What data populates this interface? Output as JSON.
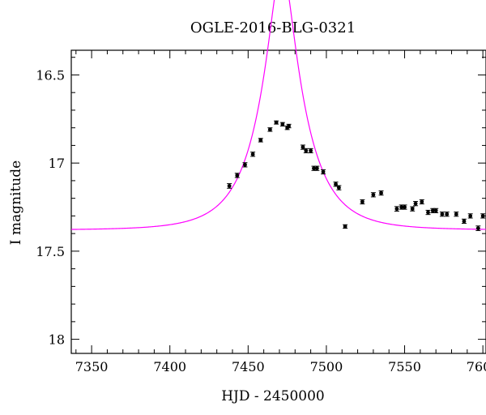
{
  "chart_data": {
    "type": "scatter",
    "title": "OGLE-2016-BLG-0321",
    "xlabel": "HJD - 2450000",
    "ylabel": "I magnitude",
    "xlim": [
      7337,
      7602
    ],
    "ylim": [
      18.08,
      16.36
    ],
    "y_inverted": true,
    "grid": false,
    "x_ticks": [
      {
        "value": 7350,
        "label": "7350"
      },
      {
        "value": 7400,
        "label": "7400"
      },
      {
        "value": 7450,
        "label": "7450"
      },
      {
        "value": 7500,
        "label": "7500"
      },
      {
        "value": 7550,
        "label": "7550"
      },
      {
        "value": 7600,
        "label": "7600"
      }
    ],
    "y_ticks": [
      {
        "value": 16.5,
        "label": "16.5"
      },
      {
        "value": 17.0,
        "label": "17"
      },
      {
        "value": 17.5,
        "label": "17.5"
      },
      {
        "value": 18.0,
        "label": "18"
      }
    ],
    "series": [
      {
        "kind": "points",
        "color": "#000000",
        "points": [
          {
            "x": 7438,
            "y": 17.13,
            "err": 0.013
          },
          {
            "x": 7443,
            "y": 17.07,
            "err": 0.012
          },
          {
            "x": 7448,
            "y": 17.01,
            "err": 0.012
          },
          {
            "x": 7453,
            "y": 16.95,
            "err": 0.012
          },
          {
            "x": 7458,
            "y": 16.87,
            "err": 0.01
          },
          {
            "x": 7464,
            "y": 16.81,
            "err": 0.01
          },
          {
            "x": 7468,
            "y": 16.77,
            "err": 0.009
          },
          {
            "x": 7472,
            "y": 16.78,
            "err": 0.01
          },
          {
            "x": 7475,
            "y": 16.8,
            "err": 0.01
          },
          {
            "x": 7476,
            "y": 16.79,
            "err": 0.01
          },
          {
            "x": 7485,
            "y": 16.91,
            "err": 0.012
          },
          {
            "x": 7487,
            "y": 16.93,
            "err": 0.012
          },
          {
            "x": 7490,
            "y": 16.93,
            "err": 0.012
          },
          {
            "x": 7492,
            "y": 17.03,
            "err": 0.012
          },
          {
            "x": 7494,
            "y": 17.03,
            "err": 0.012
          },
          {
            "x": 7498,
            "y": 17.05,
            "err": 0.012
          },
          {
            "x": 7506,
            "y": 17.12,
            "err": 0.012
          },
          {
            "x": 7508,
            "y": 17.14,
            "err": 0.012
          },
          {
            "x": 7512,
            "y": 17.36,
            "err": 0.01
          },
          {
            "x": 7523,
            "y": 17.22,
            "err": 0.012
          },
          {
            "x": 7530,
            "y": 17.18,
            "err": 0.012
          },
          {
            "x": 7535,
            "y": 17.17,
            "err": 0.012
          },
          {
            "x": 7545,
            "y": 17.26,
            "err": 0.013
          },
          {
            "x": 7548,
            "y": 17.25,
            "err": 0.012
          },
          {
            "x": 7550,
            "y": 17.25,
            "err": 0.012
          },
          {
            "x": 7555,
            "y": 17.26,
            "err": 0.012
          },
          {
            "x": 7557,
            "y": 17.23,
            "err": 0.012
          },
          {
            "x": 7561,
            "y": 17.22,
            "err": 0.012
          },
          {
            "x": 7565,
            "y": 17.28,
            "err": 0.012
          },
          {
            "x": 7568,
            "y": 17.27,
            "err": 0.012
          },
          {
            "x": 7570,
            "y": 17.27,
            "err": 0.012
          },
          {
            "x": 7574,
            "y": 17.29,
            "err": 0.012
          },
          {
            "x": 7577,
            "y": 17.29,
            "err": 0.012
          },
          {
            "x": 7583,
            "y": 17.29,
            "err": 0.012
          },
          {
            "x": 7588,
            "y": 17.33,
            "err": 0.012
          },
          {
            "x": 7592,
            "y": 17.3,
            "err": 0.012
          },
          {
            "x": 7597,
            "y": 17.37,
            "err": 0.013
          },
          {
            "x": 7600,
            "y": 17.3,
            "err": 0.012
          }
        ]
      },
      {
        "kind": "curve",
        "color": "#ff00ff",
        "model": {
          "u0": 0.26,
          "t0": 7471.5,
          "tE": 28.0,
          "m_base": 17.38
        }
      }
    ]
  }
}
